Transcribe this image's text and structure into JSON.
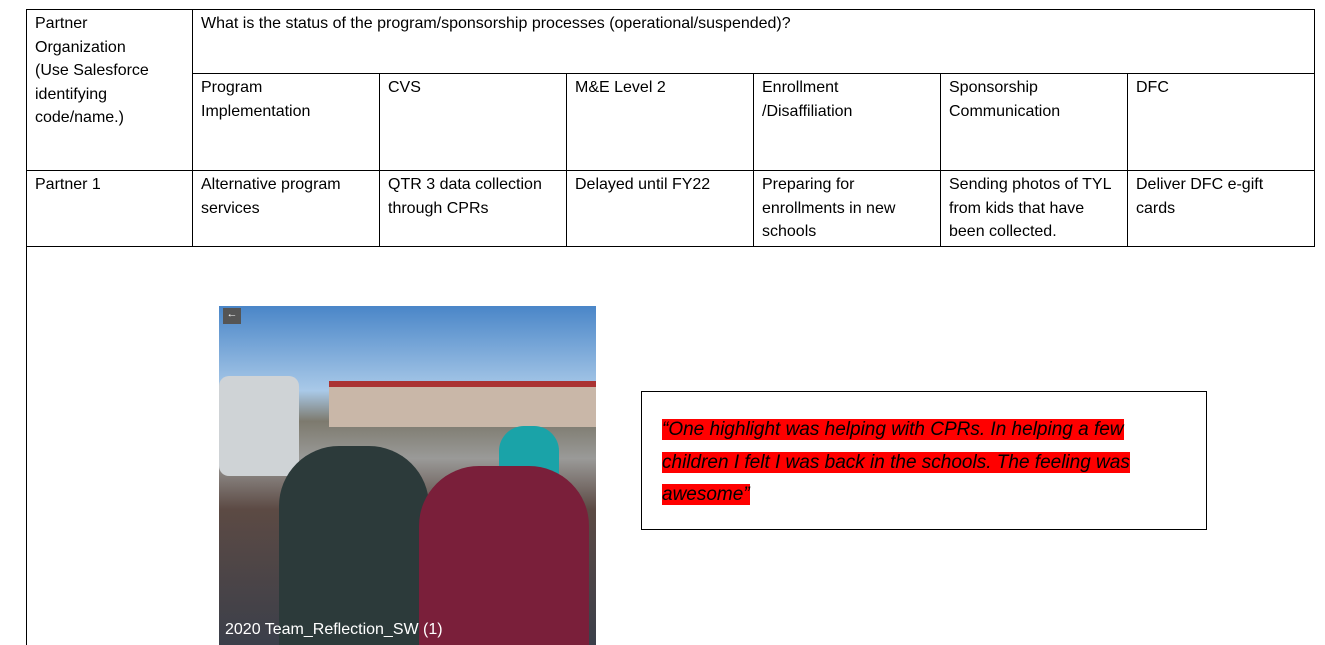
{
  "table": {
    "corner": [
      "Partner Organization",
      "(Use Salesforce identifying code/name.)"
    ],
    "question": "What is the status of the program/sponsorship processes (operational/suspended)?",
    "columns": [
      "Program Implementation",
      "CVS",
      "M&E Level 2",
      "Enrollment /Disaffiliation",
      "Sponsorship Communication",
      "DFC"
    ],
    "rows": [
      [
        "Partner 1",
        "Alternative program services",
        "QTR 3 data collection through CPRs",
        "Delayed until FY22",
        "Preparing for enrollments in new schools",
        "Sending photos of TYL from kids that have been collected.",
        "Deliver DFC e-gift cards"
      ]
    ]
  },
  "photo": {
    "caption": "2020 Team_Reflection_SW (1)"
  },
  "quote": "“One highlight was helping with CPRs. In helping a few children I felt I was back in the schools. The feeling was awesome”"
}
